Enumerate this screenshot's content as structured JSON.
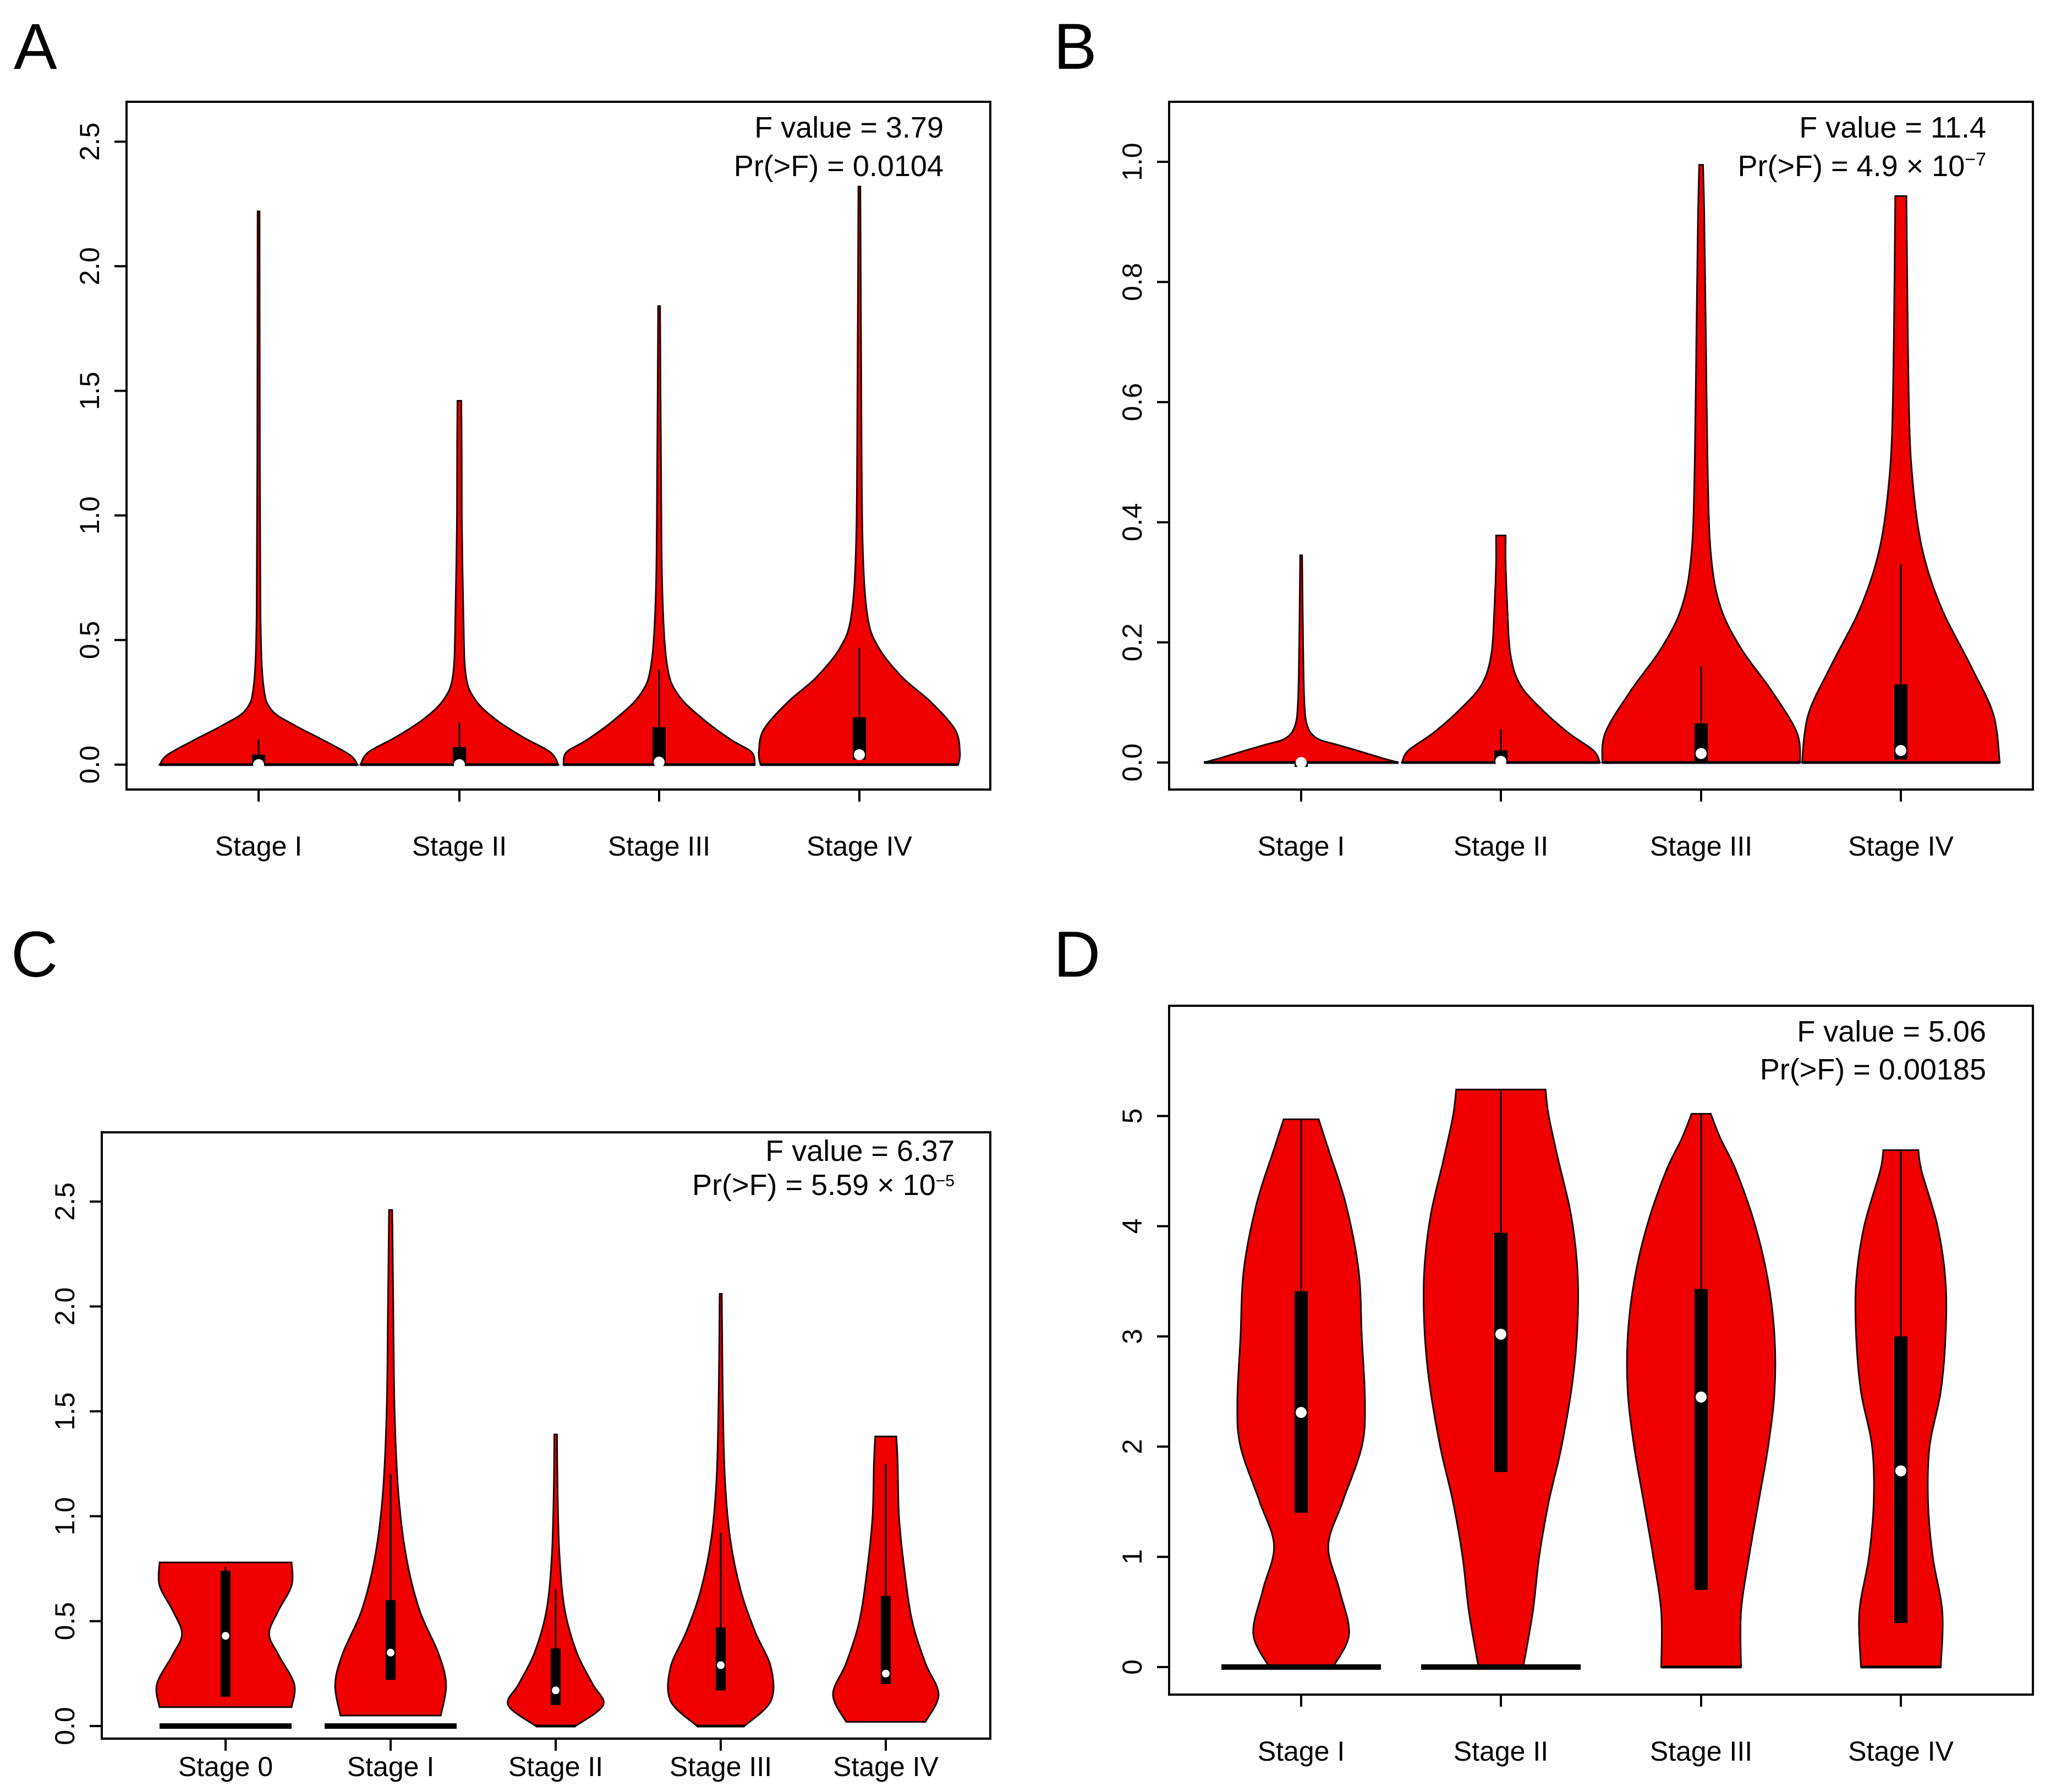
{
  "chart_data": [
    {
      "panel": "A",
      "type": "violin",
      "categories": [
        "Stage I",
        "Stage II",
        "Stage III",
        "Stage IV"
      ],
      "ylim": [
        -0.1,
        2.66
      ],
      "yticks": [
        0.0,
        0.5,
        1.0,
        1.5,
        2.0,
        2.5
      ],
      "ytick_labels": [
        "0.0",
        "0.5",
        "1.0",
        "1.5",
        "2.0",
        "2.5"
      ],
      "f_text": "F value = 3.79",
      "p_text": "Pr(>F) = 0.0104",
      "groups": [
        {
          "min": 0,
          "max": 2.22,
          "q1": 0,
          "median": 0.0,
          "q3": 0.04,
          "whisker_hi": 0.1,
          "profile": [
            [
              0,
              0.62
            ],
            [
              0.04,
              0.57
            ],
            [
              0.1,
              0.4
            ],
            [
              0.16,
              0.22
            ],
            [
              0.22,
              0.08
            ],
            [
              0.32,
              0.03
            ],
            [
              0.6,
              0.012
            ],
            [
              1.2,
              0.008
            ],
            [
              2.22,
              0.006
            ]
          ]
        },
        {
          "min": 0,
          "max": 1.46,
          "q1": 0,
          "median": 0.0,
          "q3": 0.07,
          "whisker_hi": 0.17,
          "profile": [
            [
              0,
              0.62
            ],
            [
              0.05,
              0.57
            ],
            [
              0.11,
              0.4
            ],
            [
              0.18,
              0.23
            ],
            [
              0.26,
              0.1
            ],
            [
              0.36,
              0.04
            ],
            [
              0.6,
              0.025
            ],
            [
              1.0,
              0.015
            ],
            [
              1.3,
              0.014
            ],
            [
              1.46,
              0.012
            ]
          ]
        },
        {
          "min": 0,
          "max": 1.84,
          "q1": 0,
          "median": 0.01,
          "q3": 0.15,
          "whisker_hi": 0.38,
          "profile": [
            [
              0,
              0.6
            ],
            [
              0.05,
              0.58
            ],
            [
              0.1,
              0.45
            ],
            [
              0.18,
              0.28
            ],
            [
              0.28,
              0.12
            ],
            [
              0.4,
              0.05
            ],
            [
              0.7,
              0.02
            ],
            [
              1.2,
              0.012
            ],
            [
              1.84,
              0.006
            ]
          ]
        },
        {
          "min": 0,
          "max": 2.32,
          "q1": 0.02,
          "median": 0.04,
          "q3": 0.19,
          "whisker_hi": 0.47,
          "profile": [
            [
              0,
              0.62
            ],
            [
              0.05,
              0.63
            ],
            [
              0.14,
              0.6
            ],
            [
              0.25,
              0.45
            ],
            [
              0.35,
              0.27
            ],
            [
              0.47,
              0.12
            ],
            [
              0.6,
              0.05
            ],
            [
              0.9,
              0.02
            ],
            [
              1.5,
              0.012
            ],
            [
              2.32,
              0.006
            ]
          ]
        }
      ]
    },
    {
      "panel": "B",
      "type": "violin",
      "categories": [
        "Stage I",
        "Stage II",
        "Stage III",
        "Stage IV"
      ],
      "ylim": [
        -0.045,
        1.1
      ],
      "yticks": [
        0.0,
        0.2,
        0.4,
        0.6,
        0.8,
        1.0
      ],
      "ytick_labels": [
        "0.0",
        "0.2",
        "0.4",
        "0.6",
        "0.8",
        "1.0"
      ],
      "f_text": "F value = 11.4",
      "p_text_base": "Pr(>F) = 4.9 × 10",
      "p_text_exp": "−7",
      "groups": [
        {
          "min": 0,
          "max": 0.345,
          "q1": 0,
          "median": 0.0,
          "q3": 0.0,
          "whisker_hi": 0.0,
          "profile": [
            [
              0,
              0.61
            ],
            [
              0.008,
              0.5
            ],
            [
              0.02,
              0.35
            ],
            [
              0.03,
              0.22
            ],
            [
              0.04,
              0.1
            ],
            [
              0.06,
              0.04
            ],
            [
              0.1,
              0.02
            ],
            [
              0.2,
              0.012
            ],
            [
              0.345,
              0.006
            ]
          ]
        },
        {
          "min": 0,
          "max": 0.378,
          "q1": 0,
          "median": 0.002,
          "q3": 0.02,
          "whisker_hi": 0.055,
          "profile": [
            [
              0,
              0.62
            ],
            [
              0.02,
              0.58
            ],
            [
              0.05,
              0.42
            ],
            [
              0.09,
              0.25
            ],
            [
              0.13,
              0.12
            ],
            [
              0.18,
              0.06
            ],
            [
              0.26,
              0.04
            ],
            [
              0.33,
              0.03
            ],
            [
              0.378,
              0.03
            ]
          ]
        },
        {
          "min": 0,
          "max": 0.995,
          "q1": 0,
          "median": 0.015,
          "q3": 0.065,
          "whisker_hi": 0.16,
          "profile": [
            [
              0,
              0.62
            ],
            [
              0.05,
              0.6
            ],
            [
              0.12,
              0.44
            ],
            [
              0.19,
              0.25
            ],
            [
              0.26,
              0.12
            ],
            [
              0.35,
              0.06
            ],
            [
              0.5,
              0.04
            ],
            [
              0.7,
              0.03
            ],
            [
              0.9,
              0.02
            ],
            [
              0.995,
              0.012
            ]
          ]
        },
        {
          "min": 0,
          "max": 0.943,
          "q1": 0.005,
          "median": 0.02,
          "q3": 0.13,
          "whisker_hi": 0.33,
          "profile": [
            [
              0,
              0.62
            ],
            [
              0.08,
              0.58
            ],
            [
              0.16,
              0.44
            ],
            [
              0.26,
              0.25
            ],
            [
              0.36,
              0.13
            ],
            [
              0.48,
              0.07
            ],
            [
              0.6,
              0.05
            ],
            [
              0.8,
              0.04
            ],
            [
              0.943,
              0.035
            ]
          ]
        }
      ]
    },
    {
      "panel": "C",
      "type": "violin",
      "categories": [
        "Stage 0",
        "Stage I",
        "Stage II",
        "Stage III",
        "Stage IV"
      ],
      "ylim": [
        -0.06,
        2.83
      ],
      "yticks": [
        0.0,
        0.5,
        1.0,
        1.5,
        2.0,
        2.5
      ],
      "ytick_labels": [
        "0.0",
        "0.5",
        "1.0",
        "1.5",
        "2.0",
        "2.5"
      ],
      "f_text": "F value = 6.37",
      "p_text_base": "Pr(>F) = 5.59 × 10",
      "p_text_exp": "−5",
      "zero_bars": [
        true,
        true,
        false,
        false,
        false
      ],
      "groups": [
        {
          "min": 0.09,
          "max": 0.78,
          "q1": 0.14,
          "median": 0.43,
          "q3": 0.74,
          "whisker_hi": 0.76,
          "profile": [
            [
              0.09,
              0.5
            ],
            [
              0.2,
              0.52
            ],
            [
              0.34,
              0.4
            ],
            [
              0.44,
              0.33
            ],
            [
              0.55,
              0.4
            ],
            [
              0.67,
              0.5
            ],
            [
              0.78,
              0.5
            ]
          ]
        },
        {
          "min": 0.05,
          "max": 2.46,
          "q1": 0.22,
          "median": 0.35,
          "q3": 0.6,
          "whisker_hi": 1.2,
          "profile": [
            [
              0.05,
              0.38
            ],
            [
              0.2,
              0.42
            ],
            [
              0.35,
              0.36
            ],
            [
              0.55,
              0.22
            ],
            [
              0.8,
              0.12
            ],
            [
              1.1,
              0.06
            ],
            [
              1.5,
              0.03
            ],
            [
              2.0,
              0.02
            ],
            [
              2.46,
              0.012
            ]
          ]
        },
        {
          "min": 0,
          "max": 1.39,
          "q1": 0.1,
          "median": 0.17,
          "q3": 0.37,
          "whisker_hi": 0.65,
          "profile": [
            [
              0,
              0.15
            ],
            [
              0.1,
              0.36
            ],
            [
              0.2,
              0.28
            ],
            [
              0.35,
              0.16
            ],
            [
              0.55,
              0.07
            ],
            [
              0.8,
              0.03
            ],
            [
              1.1,
              0.015
            ],
            [
              1.39,
              0.01
            ]
          ]
        },
        {
          "min": 0,
          "max": 2.06,
          "q1": 0.17,
          "median": 0.29,
          "q3": 0.47,
          "whisker_hi": 0.92,
          "profile": [
            [
              0,
              0.18
            ],
            [
              0.12,
              0.38
            ],
            [
              0.28,
              0.38
            ],
            [
              0.45,
              0.26
            ],
            [
              0.65,
              0.15
            ],
            [
              0.9,
              0.07
            ],
            [
              1.2,
              0.03
            ],
            [
              1.6,
              0.015
            ],
            [
              2.06,
              0.008
            ]
          ]
        },
        {
          "min": 0.02,
          "max": 1.38,
          "q1": 0.2,
          "median": 0.25,
          "q3": 0.62,
          "whisker_hi": 1.25,
          "profile": [
            [
              0.02,
              0.3
            ],
            [
              0.15,
              0.4
            ],
            [
              0.3,
              0.3
            ],
            [
              0.5,
              0.2
            ],
            [
              0.75,
              0.14
            ],
            [
              1.0,
              0.1
            ],
            [
              1.25,
              0.09
            ],
            [
              1.38,
              0.08
            ]
          ]
        }
      ]
    },
    {
      "panel": "D",
      "type": "violin",
      "categories": [
        "Stage I",
        "Stage II",
        "Stage III",
        "Stage IV"
      ],
      "ylim": [
        -0.25,
        6.0
      ],
      "yticks": [
        0,
        1,
        2,
        3,
        4,
        5
      ],
      "ytick_labels": [
        "0",
        "1",
        "2",
        "3",
        "4",
        "5"
      ],
      "f_text": "F value = 5.06",
      "p_text": "Pr(>F) = 0.00185",
      "zero_bars": [
        true,
        true,
        false,
        false
      ],
      "groups": [
        {
          "min": 0,
          "max": 4.97,
          "q1": 1.4,
          "median": 2.31,
          "q3": 3.41,
          "whisker_hi": 4.97,
          "profile": [
            [
              0,
              0.2
            ],
            [
              0.3,
              0.3
            ],
            [
              0.7,
              0.24
            ],
            [
              1.1,
              0.17
            ],
            [
              1.5,
              0.26
            ],
            [
              2.0,
              0.38
            ],
            [
              2.4,
              0.4
            ],
            [
              3.0,
              0.38
            ],
            [
              3.6,
              0.36
            ],
            [
              4.2,
              0.28
            ],
            [
              4.7,
              0.17
            ],
            [
              4.97,
              0.11
            ]
          ]
        },
        {
          "min": 0,
          "max": 5.24,
          "q1": 1.77,
          "median": 3.02,
          "q3": 3.94,
          "whisker_hi": 5.24,
          "profile": [
            [
              0,
              0.14
            ],
            [
              0.5,
              0.2
            ],
            [
              1.0,
              0.24
            ],
            [
              1.5,
              0.3
            ],
            [
              2.0,
              0.38
            ],
            [
              2.6,
              0.45
            ],
            [
              3.1,
              0.48
            ],
            [
              3.6,
              0.48
            ],
            [
              4.1,
              0.44
            ],
            [
              4.6,
              0.36
            ],
            [
              5.0,
              0.3
            ],
            [
              5.24,
              0.28
            ]
          ]
        },
        {
          "min": 0,
          "max": 5.02,
          "q1": 0.7,
          "median": 2.45,
          "q3": 3.43,
          "whisker_hi": 5.02,
          "profile": [
            [
              0,
              0.25
            ],
            [
              0.5,
              0.25
            ],
            [
              1.0,
              0.3
            ],
            [
              1.5,
              0.36
            ],
            [
              2.0,
              0.42
            ],
            [
              2.5,
              0.46
            ],
            [
              3.0,
              0.46
            ],
            [
              3.5,
              0.42
            ],
            [
              4.0,
              0.34
            ],
            [
              4.5,
              0.22
            ],
            [
              4.8,
              0.12
            ],
            [
              5.02,
              0.06
            ]
          ]
        },
        {
          "min": 0,
          "max": 4.69,
          "q1": 0.4,
          "median": 1.78,
          "q3": 3.0,
          "whisker_hi": 4.69,
          "profile": [
            [
              0,
              0.25
            ],
            [
              0.5,
              0.26
            ],
            [
              1.0,
              0.2
            ],
            [
              1.5,
              0.17
            ],
            [
              2.0,
              0.18
            ],
            [
              2.5,
              0.25
            ],
            [
              3.0,
              0.28
            ],
            [
              3.5,
              0.28
            ],
            [
              4.0,
              0.23
            ],
            [
              4.5,
              0.13
            ],
            [
              4.69,
              0.11
            ]
          ]
        }
      ]
    }
  ]
}
